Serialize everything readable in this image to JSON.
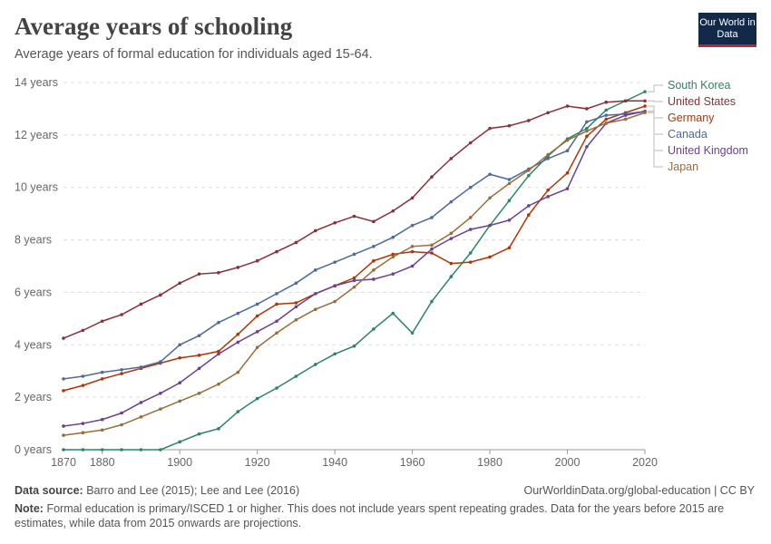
{
  "header": {
    "title": "Average years of schooling",
    "subtitle": "Average years of formal education for individuals aged 15-64.",
    "logo": "Our World in Data"
  },
  "footer": {
    "source_label": "Data source:",
    "source": "Barro and Lee (2015); Lee and Lee (2016)",
    "url": "OurWorldinData.org/global-education | CC BY",
    "note_label": "Note:",
    "note": "Formal education is primary/ISCED 1 or higher. This does not include years spent repeating grades. Data for the years before 2015 are estimates, while data from 2015 onwards are projections."
  },
  "chart_data": {
    "type": "line",
    "title": "Average years of schooling",
    "xlim": [
      1870,
      2020
    ],
    "ylim": [
      0,
      14
    ],
    "x_ticks": [
      "1880",
      "1900",
      "1920",
      "1940",
      "1960",
      "1980",
      "2000",
      "2020"
    ],
    "x_tick_values": [
      1880,
      1900,
      1920,
      1940,
      1960,
      1980,
      2000,
      2020
    ],
    "first_tick": "1870",
    "y_ticks": [
      "0 years",
      "2 years",
      "4 years",
      "6 years",
      "8 years",
      "10 years",
      "12 years",
      "14 years"
    ],
    "y_tick_values": [
      0,
      2,
      4,
      6,
      8,
      10,
      12,
      14
    ],
    "grid": "horizontal dashed",
    "legend": "right (line-end labels)",
    "x": [
      1870,
      1875,
      1880,
      1885,
      1890,
      1895,
      1900,
      1905,
      1910,
      1915,
      1920,
      1925,
      1930,
      1935,
      1940,
      1945,
      1950,
      1955,
      1960,
      1965,
      1970,
      1975,
      1980,
      1985,
      1990,
      1995,
      2000,
      2005,
      2010,
      2015,
      2020
    ],
    "series": [
      {
        "name": "South Korea",
        "color": "#2c8465",
        "values": [
          0,
          0,
          0,
          0,
          0,
          0,
          0.3,
          0.6,
          0.8,
          1.45,
          1.95,
          2.35,
          2.8,
          3.25,
          3.65,
          3.95,
          4.6,
          5.2,
          4.45,
          5.65,
          6.6,
          7.5,
          8.55,
          9.5,
          10.45,
          11.2,
          11.85,
          12.25,
          12.95,
          13.3,
          13.65
        ]
      },
      {
        "name": "United States",
        "color": "#883039",
        "values": [
          4.25,
          4.55,
          4.9,
          5.15,
          5.55,
          5.9,
          6.35,
          6.7,
          6.75,
          6.95,
          7.2,
          7.55,
          7.9,
          8.35,
          8.65,
          8.9,
          8.7,
          9.1,
          9.6,
          10.4,
          11.1,
          11.7,
          12.25,
          12.35,
          12.55,
          12.85,
          13.1,
          13.0,
          13.25,
          13.3,
          13.3
        ]
      },
      {
        "name": "Germany",
        "color": "#b13507",
        "values": [
          2.25,
          2.45,
          2.7,
          2.9,
          3.1,
          3.3,
          3.5,
          3.6,
          3.75,
          4.4,
          5.1,
          5.55,
          5.6,
          5.95,
          6.25,
          6.55,
          7.2,
          7.45,
          7.55,
          7.5,
          7.1,
          7.15,
          7.35,
          7.7,
          8.95,
          9.9,
          10.55,
          11.95,
          12.6,
          12.85,
          13.1
        ]
      },
      {
        "name": "Canada",
        "color": "#4c6a9c",
        "values": [
          2.7,
          2.8,
          2.95,
          3.05,
          3.15,
          3.35,
          4.0,
          4.35,
          4.85,
          5.2,
          5.55,
          5.95,
          6.35,
          6.85,
          7.15,
          7.45,
          7.75,
          8.1,
          8.55,
          8.85,
          9.45,
          10.0,
          10.5,
          10.3,
          10.7,
          11.1,
          11.4,
          12.5,
          12.75,
          12.8,
          12.9
        ]
      },
      {
        "name": "United Kingdom",
        "color": "#6d3e91",
        "values": [
          0.9,
          1.0,
          1.15,
          1.4,
          1.8,
          2.15,
          2.55,
          3.1,
          3.65,
          4.1,
          4.5,
          4.9,
          5.45,
          5.95,
          6.25,
          6.45,
          6.5,
          6.7,
          7.0,
          7.65,
          8.05,
          8.4,
          8.55,
          8.75,
          9.3,
          9.65,
          9.95,
          11.55,
          12.45,
          12.75,
          12.9
        ]
      },
      {
        "name": "Japan",
        "color": "#996d39",
        "values": [
          0.55,
          0.65,
          0.75,
          0.95,
          1.25,
          1.55,
          1.85,
          2.15,
          2.5,
          2.95,
          3.9,
          4.45,
          4.95,
          5.35,
          5.65,
          6.2,
          6.85,
          7.35,
          7.75,
          7.8,
          8.25,
          8.85,
          9.6,
          10.15,
          10.65,
          11.25,
          11.8,
          12.15,
          12.45,
          12.6,
          12.85
        ]
      }
    ]
  }
}
